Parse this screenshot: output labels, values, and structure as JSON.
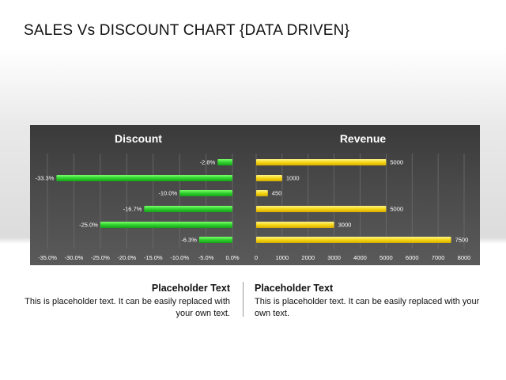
{
  "slide": {
    "title": "SALES Vs DISCOUNT CHART {DATA DRIVEN}"
  },
  "chart_data": [
    {
      "type": "bar",
      "orientation": "horizontal",
      "title": "Discount",
      "values": [
        -2.8,
        -33.3,
        -10.0,
        -16.7,
        -25.0,
        -6.3
      ],
      "data_labels": [
        "-2.8%",
        "-33.3%",
        "-10.0%",
        "-16.7%",
        "-25.0%",
        "-6.3%"
      ],
      "xlim": [
        -35,
        0
      ],
      "x_ticks": [
        "-35.0%",
        "-30.0%",
        "-25.0%",
        "-20.0%",
        "-15.0%",
        "-10.0%",
        "-5.0%",
        "0.0%"
      ],
      "grid": true,
      "color": "#2ecc2e"
    },
    {
      "type": "bar",
      "orientation": "horizontal",
      "title": "Revenue",
      "values": [
        5000,
        1000,
        450,
        5000,
        3000,
        7500
      ],
      "data_labels": [
        "5000",
        "1000",
        "450",
        "5000",
        "3000",
        "7500"
      ],
      "xlim": [
        0,
        8000
      ],
      "x_ticks": [
        "0",
        "1000",
        "2000",
        "3000",
        "4000",
        "5000",
        "6000",
        "7000",
        "8000"
      ],
      "grid": true,
      "color": "#f2d21a"
    }
  ],
  "captions": {
    "left": {
      "heading": "Placeholder Text",
      "body": "This is placeholder text.  It can be easily replaced with your own text."
    },
    "right": {
      "heading": "Placeholder Text",
      "body": "This is placeholder text.  It can be easily replaced with your own text."
    }
  }
}
